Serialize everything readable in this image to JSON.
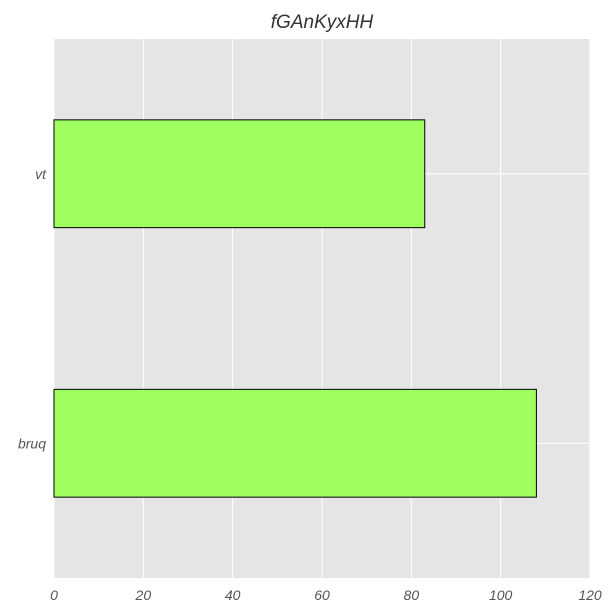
{
  "chart_data": {
    "type": "bar",
    "orientation": "horizontal",
    "title": "fGAnKyxHH",
    "xlabel": "",
    "ylabel": "",
    "categories": [
      "vt",
      "bruq"
    ],
    "values": [
      83,
      108
    ],
    "xlim": [
      0,
      120
    ],
    "xticks": [
      0,
      20,
      40,
      60,
      80,
      100,
      120
    ],
    "grid": true,
    "legend": "none",
    "colors": {
      "bar_fill": "#a0ff60",
      "bar_edge": "#000000",
      "plot_background": "#e5e5e5",
      "grid": "#ffffff"
    }
  }
}
